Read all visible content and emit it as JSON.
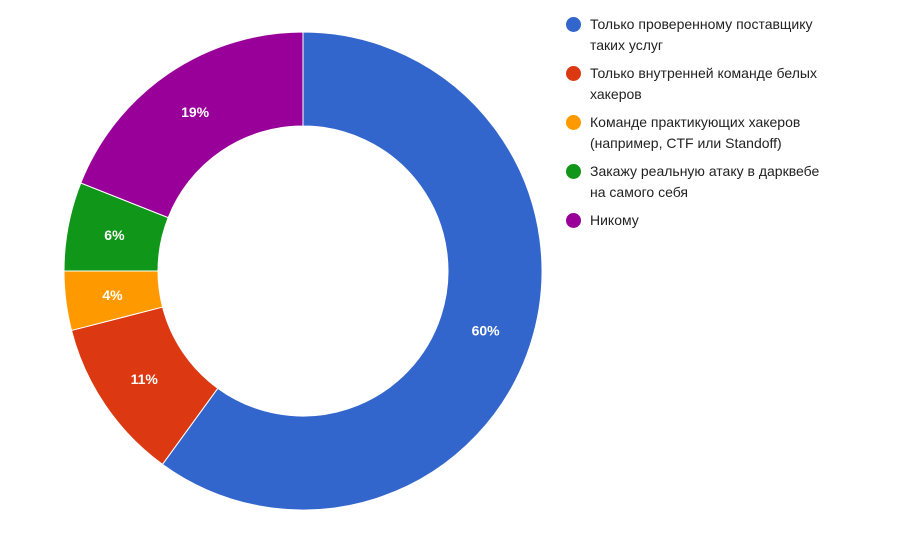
{
  "chart_data": {
    "type": "pie",
    "variant": "donut",
    "title": "",
    "legend_position": "right",
    "slices": [
      {
        "label": "Только проверенному поставщику таких услуг",
        "value": 60,
        "display": "60%",
        "color": "#3366cc"
      },
      {
        "label": "Только внутренней команде белых хакеров",
        "value": 11,
        "display": "11%",
        "color": "#dc3912"
      },
      {
        "label": "Команде практикующих хакеров (например, CTF или Standoff)",
        "value": 4,
        "display": "4%",
        "color": "#ff9900"
      },
      {
        "label": "Закажу реальную атаку в дарквебе на самого себя",
        "value": 6,
        "display": "6%",
        "color": "#109618"
      },
      {
        "label": "Никому",
        "value": 19,
        "display": "19%",
        "color": "#990099"
      }
    ]
  }
}
